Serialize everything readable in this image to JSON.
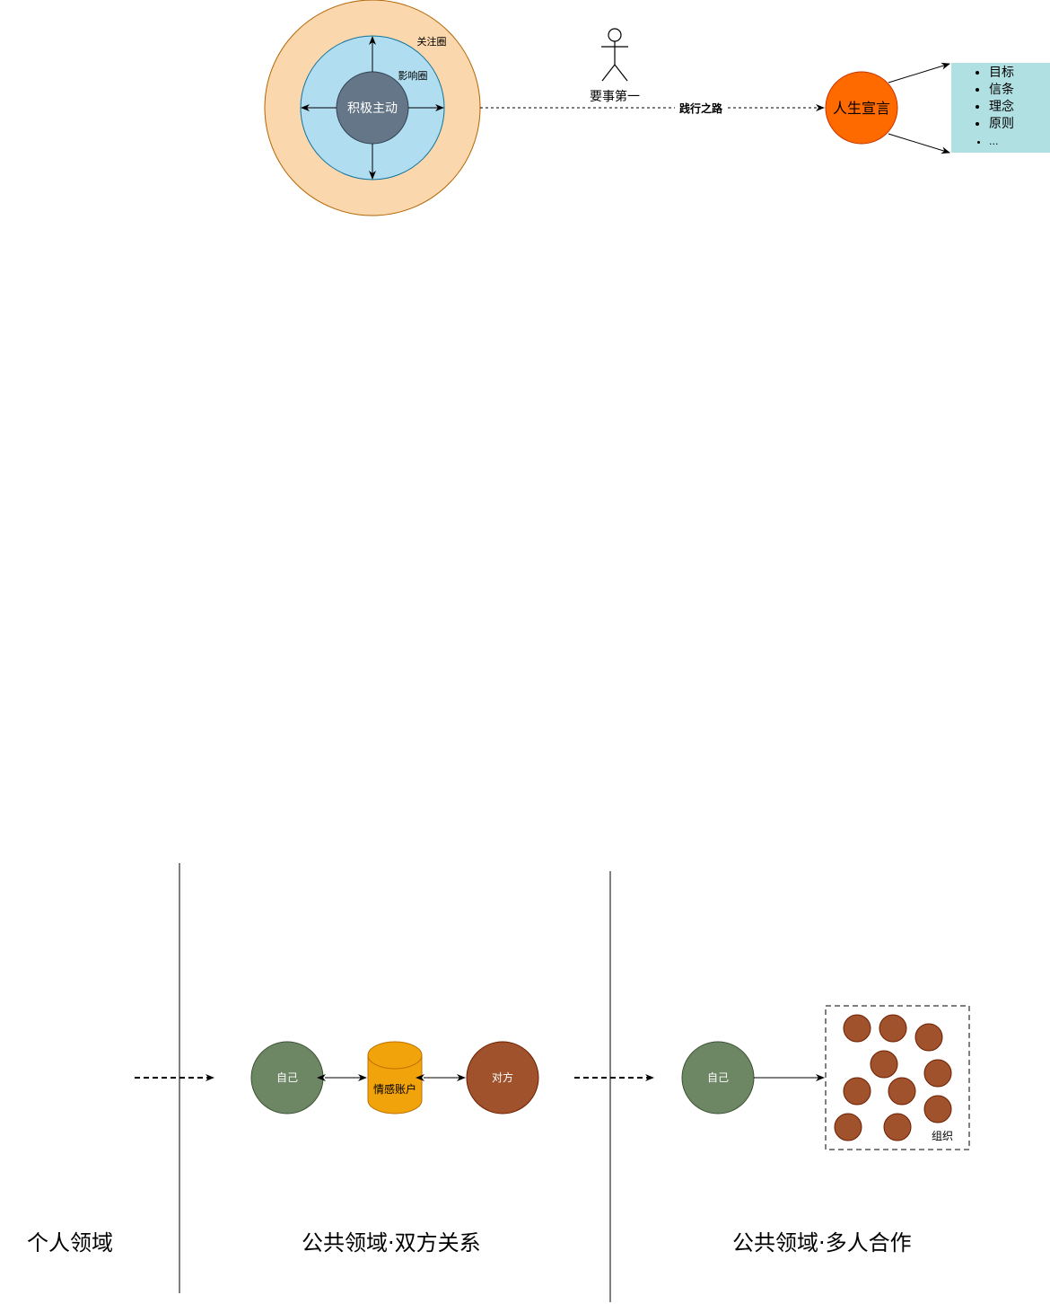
{
  "top": {
    "concern_circle_label": "关注圈",
    "influence_circle_label": "影响圈",
    "core_label": "积极主动",
    "person_label": "要事第一",
    "path_label": "践行之路",
    "mission_label": "人生宣言",
    "mission_items": [
      "目标",
      "信条",
      "理念",
      "原则",
      "..."
    ]
  },
  "bottom": {
    "sections": [
      "个人领域",
      "公共领域·双方关系",
      "公共领域·多人合作"
    ],
    "self_label": "自己",
    "account_label": "情感账户",
    "other_label": "对方",
    "self_label_2": "自己",
    "org_label": "组织"
  },
  "colors": {
    "concern_fill": "#fad7ac",
    "concern_stroke": "#b46504",
    "influence_fill": "#b1ddf0",
    "core_fill": "#647687",
    "mission_fill": "#ff6a00",
    "list_fill": "#b1e0e3",
    "self_fill": "#6d8764",
    "account_fill": "#f0a30a",
    "other_fill": "#a0522d"
  }
}
